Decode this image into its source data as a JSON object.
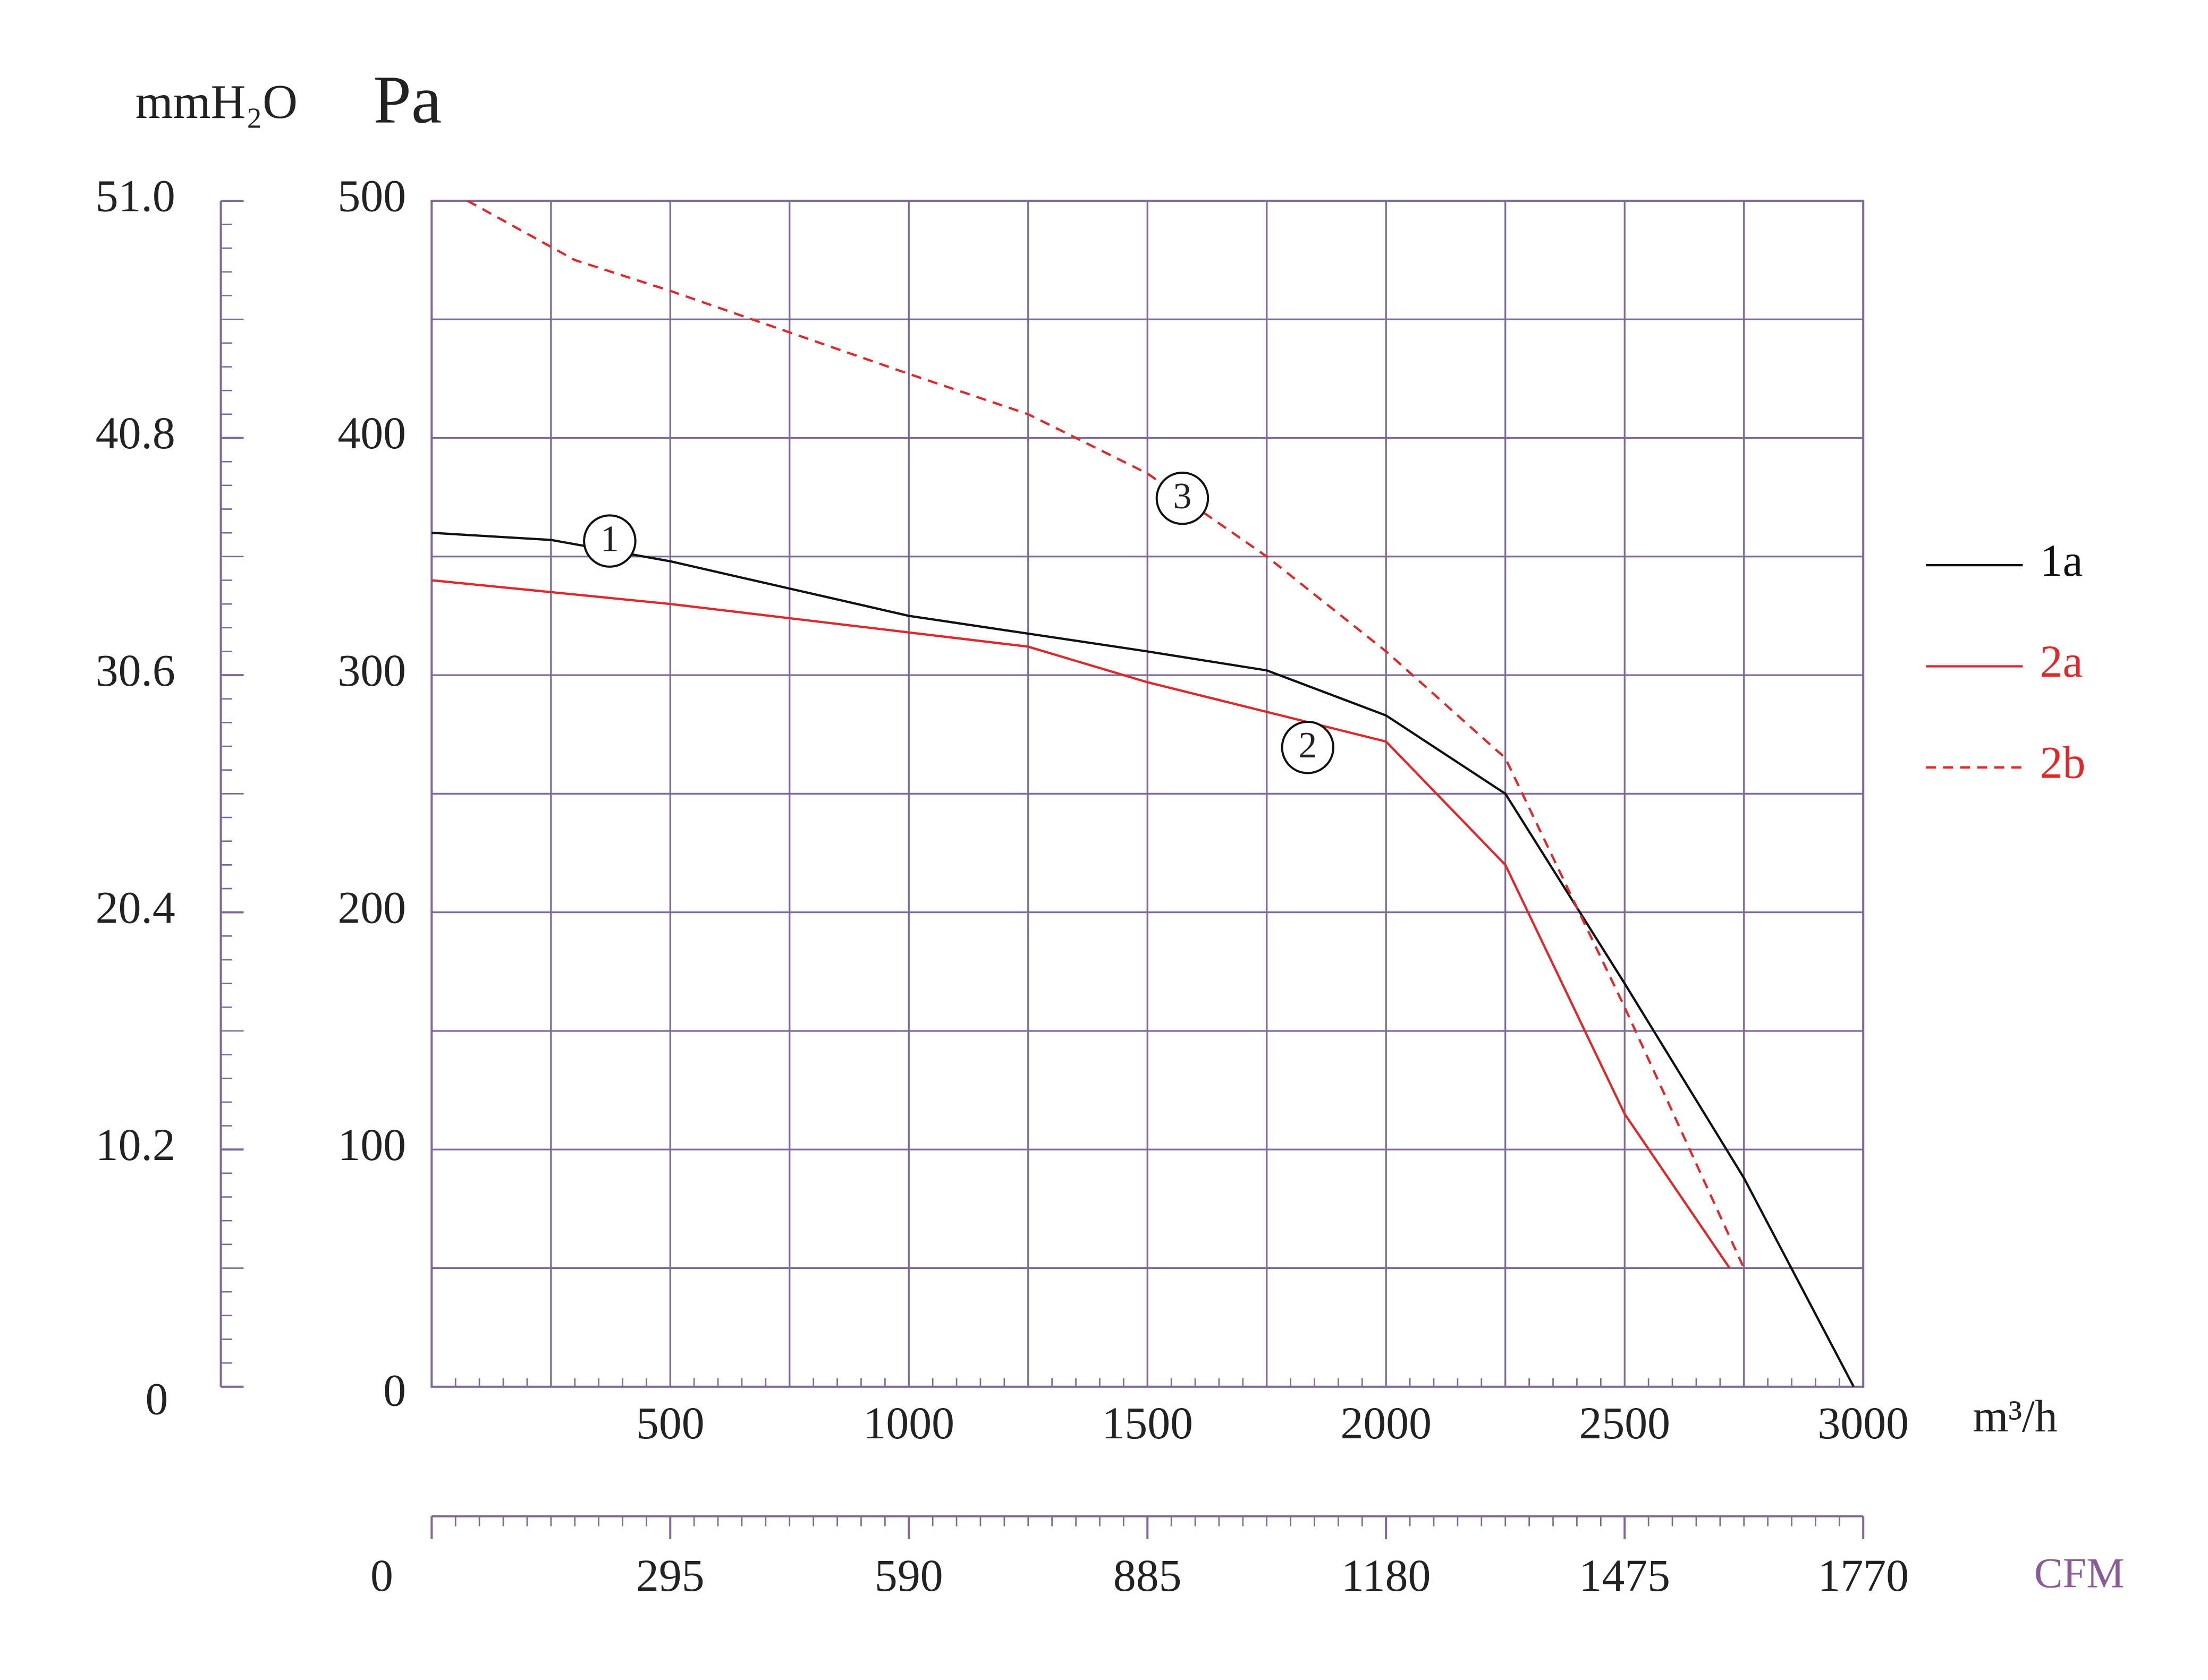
{
  "chart_data": {
    "type": "line",
    "y_axis_label": "Pa",
    "y2_axis_label": "mmH₂O",
    "x_axis_label": "m³/h",
    "x2_axis_label": "CFM",
    "xlim": [
      0,
      3000
    ],
    "xticks": [
      500,
      1000,
      1500,
      2000,
      2500,
      3000
    ],
    "xgrid_minor": [
      250,
      750,
      1250,
      1750,
      2250,
      2750
    ],
    "ylim": [
      0,
      500
    ],
    "yticks": [
      0,
      100,
      200,
      300,
      400,
      500
    ],
    "ygrid_minor": [
      50,
      150,
      250,
      350,
      450
    ],
    "y2lim": [
      0,
      51
    ],
    "y2ticks": [
      0,
      10.2,
      20.4,
      30.6,
      40.8,
      {
        "value": 51,
        "label": "51.0"
      }
    ],
    "x2lim": [
      0,
      1770
    ],
    "x2ticks": [
      0,
      295,
      590,
      885,
      1180,
      1475,
      1770
    ],
    "grid": true,
    "legend": "right",
    "series": [
      {
        "name": "1a",
        "color": "#111111",
        "dash": false,
        "label": "1",
        "x": [
          0,
          250,
          500,
          1000,
          1500,
          1750,
          2000,
          2250,
          2500,
          2750,
          2980
        ],
        "values": [
          360,
          357,
          348,
          325,
          310,
          302,
          283,
          250,
          170,
          88,
          0
        ]
      },
      {
        "name": "2a",
        "color": "#e0282a",
        "dash": false,
        "label": "2",
        "x": [
          0,
          500,
          1000,
          1250,
          1500,
          2000,
          2250,
          2500,
          2720
        ],
        "values": [
          340,
          330,
          318,
          312,
          297,
          272,
          220,
          115,
          50
        ]
      },
      {
        "name": "2b",
        "color": "#e0282a",
        "dash": true,
        "label": "3",
        "x": [
          75,
          300,
          500,
          1000,
          1250,
          1500,
          1750,
          2000,
          2250,
          2500,
          2750
        ],
        "values": [
          500,
          475,
          462,
          427,
          410,
          385,
          350,
          310,
          265,
          160,
          50
        ]
      }
    ]
  }
}
